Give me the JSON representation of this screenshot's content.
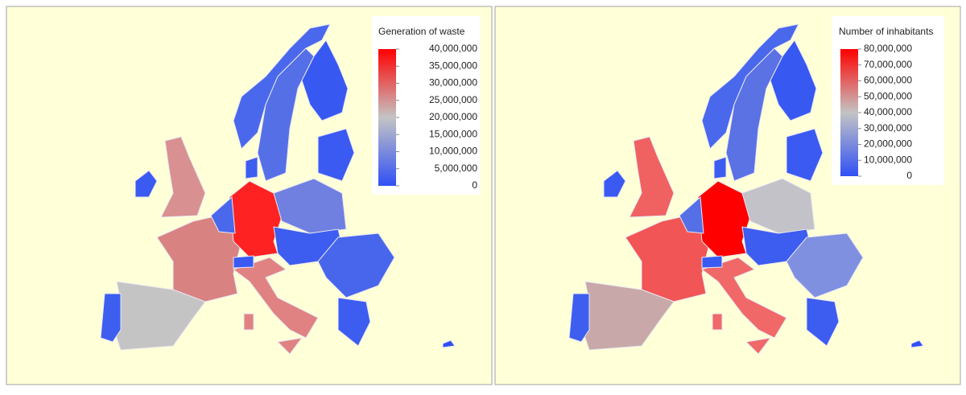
{
  "maps": [
    {
      "legend_title": "Generation of waste",
      "range": [
        0,
        40000000
      ],
      "colors": [
        "#3050f5",
        "#c4c4c4",
        "#ff0000"
      ],
      "ticks": [
        {
          "value": 40000000,
          "label": "40,000,000"
        },
        {
          "value": 35000000,
          "label": "35,000,000"
        },
        {
          "value": 30000000,
          "label": "30,000,000"
        },
        {
          "value": 25000000,
          "label": "25,000,000"
        },
        {
          "value": 20000000,
          "label": "20,000,000"
        },
        {
          "value": 15000000,
          "label": "15,000,000"
        },
        {
          "value": 10000000,
          "label": "10,000,000"
        },
        {
          "value": 5000000,
          "label": "5,000,000"
        },
        0
      ]
    },
    {
      "legend_title": "Number of inhabitants",
      "range": [
        0,
        80000000
      ],
      "colors": [
        "#3050f5",
        "#c4c4c4",
        "#ff0000"
      ],
      "ticks": [
        {
          "value": 80000000,
          "label": "80,000,000"
        },
        {
          "value": 70000000,
          "label": "70,000,000"
        },
        {
          "value": 60000000,
          "label": "60,000,000"
        },
        {
          "value": 50000000,
          "label": "50,000,000"
        },
        {
          "value": 40000000,
          "label": "40,000,000"
        },
        {
          "value": 30000000,
          "label": "30,000,000"
        },
        {
          "value": 20000000,
          "label": "20,000,000"
        },
        {
          "value": 10000000,
          "label": "10,000,000"
        },
        0
      ]
    }
  ]
}
